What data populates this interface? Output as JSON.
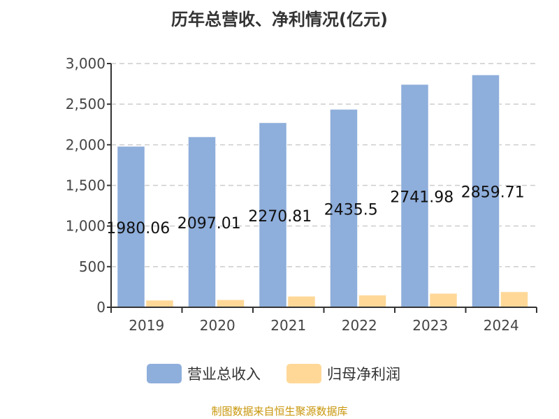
{
  "chart_data": {
    "type": "bar",
    "title": "历年总营收、净利情况(亿元)",
    "categories": [
      "2019",
      "2020",
      "2021",
      "2022",
      "2023",
      "2024"
    ],
    "series": [
      {
        "name": "营业总收入",
        "values": [
          1980.06,
          2097.01,
          2270.81,
          2435.5,
          2741.98,
          2859.71
        ],
        "color": "#8eaedb",
        "data_labels": [
          "1980.06",
          "2097.01",
          "2270.81",
          "2435.5",
          "2741.98",
          "2859.71"
        ]
      },
      {
        "name": "归母净利润",
        "values": [
          86,
          92,
          135,
          149,
          170,
          190
        ],
        "color": "#ffd898"
      }
    ],
    "ylim": [
      0,
      3000
    ],
    "yticks": [
      "0",
      "500",
      "1,000",
      "1,500",
      "2,000",
      "2,500",
      "3,000"
    ],
    "grid": true,
    "legend": "bottom"
  },
  "source": "制图数据来自恒生聚源数据库"
}
